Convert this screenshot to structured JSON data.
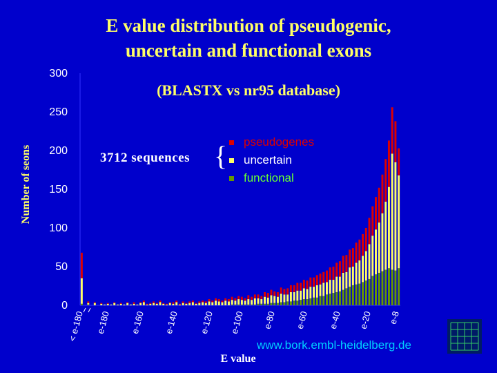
{
  "title_line1": "E value distribution of pseudogenic,",
  "title_line2": "uncertain and functional exons",
  "subtitle": "(BLASTX vs nr95 database)",
  "sequences_note": "3712 sequences",
  "ylabel": "Number of seons",
  "xlabel": "E value",
  "url": "www.bork.embl-heidelberg.de",
  "colors": {
    "background": "#0000cc",
    "pseudogenes": "#dd0000",
    "uncertain": "#ffff66",
    "functional": "#669900"
  },
  "chart_data": {
    "type": "bar",
    "stacked": true,
    "ylim": [
      0,
      300
    ],
    "yticks": [
      0,
      50,
      100,
      150,
      200,
      250,
      300
    ],
    "xtick_labels": [
      "< e-180",
      "e-180",
      "e-160",
      "e-140",
      "e-120",
      "e-100",
      "e-80",
      "e-60",
      "e-40",
      "e-20",
      "e-8"
    ],
    "legend": [
      "pseudogenes",
      "uncertain",
      "functional"
    ],
    "series": [
      {
        "name": "functional",
        "values": [
          2,
          0,
          1,
          0,
          0,
          0,
          0,
          0,
          0,
          0,
          0,
          0,
          0,
          0,
          0,
          0,
          0,
          0,
          0,
          0,
          0,
          0,
          0,
          0,
          0,
          0,
          0,
          0,
          0,
          0,
          0,
          0,
          0,
          0,
          0,
          0,
          0,
          0,
          0,
          0,
          0,
          0,
          0,
          0,
          0,
          0,
          1,
          1,
          1,
          1,
          1,
          1,
          1,
          1,
          2,
          2,
          2,
          2,
          3,
          3,
          3,
          4,
          4,
          5,
          5,
          6,
          6,
          7,
          8,
          8,
          9,
          10,
          10,
          12,
          12,
          14,
          15,
          16,
          17,
          18,
          20,
          22,
          24,
          26,
          27,
          28,
          30,
          32,
          34,
          38,
          40,
          42,
          44,
          46,
          48,
          46,
          45,
          48
        ]
      },
      {
        "name": "uncertain",
        "values": [
          33,
          0,
          2,
          0,
          3,
          0,
          2,
          1,
          2,
          1,
          3,
          1,
          2,
          1,
          3,
          1,
          2,
          1,
          3,
          4,
          1,
          2,
          3,
          2,
          4,
          2,
          1,
          3,
          2,
          4,
          1,
          3,
          2,
          3,
          4,
          2,
          3,
          4,
          3,
          5,
          4,
          6,
          5,
          4,
          6,
          5,
          6,
          5,
          7,
          6,
          5,
          7,
          6,
          8,
          7,
          6,
          9,
          8,
          10,
          9,
          8,
          11,
          10,
          9,
          12,
          11,
          13,
          12,
          14,
          13,
          15,
          14,
          16,
          15,
          17,
          16,
          18,
          17,
          20,
          19,
          22,
          21,
          25,
          24,
          28,
          30,
          34,
          38,
          45,
          52,
          58,
          65,
          75,
          88,
          105,
          150,
          140,
          120
        ]
      },
      {
        "name": "pseudogenes",
        "values": [
          33,
          0,
          2,
          0,
          1,
          0,
          1,
          0,
          1,
          0,
          1,
          0,
          1,
          0,
          1,
          0,
          2,
          0,
          1,
          2,
          1,
          1,
          2,
          1,
          2,
          1,
          1,
          1,
          2,
          2,
          1,
          2,
          1,
          2,
          2,
          1,
          2,
          2,
          2,
          3,
          2,
          3,
          3,
          2,
          3,
          3,
          4,
          3,
          4,
          4,
          3,
          5,
          4,
          5,
          5,
          4,
          6,
          6,
          7,
          6,
          6,
          8,
          7,
          8,
          9,
          9,
          10,
          10,
          11,
          11,
          12,
          12,
          13,
          14,
          14,
          15,
          16,
          17,
          18,
          20,
          22,
          22,
          23,
          24,
          26,
          27,
          28,
          30,
          34,
          38,
          42,
          45,
          50,
          55,
          60,
          60,
          53,
          35
        ]
      }
    ]
  }
}
